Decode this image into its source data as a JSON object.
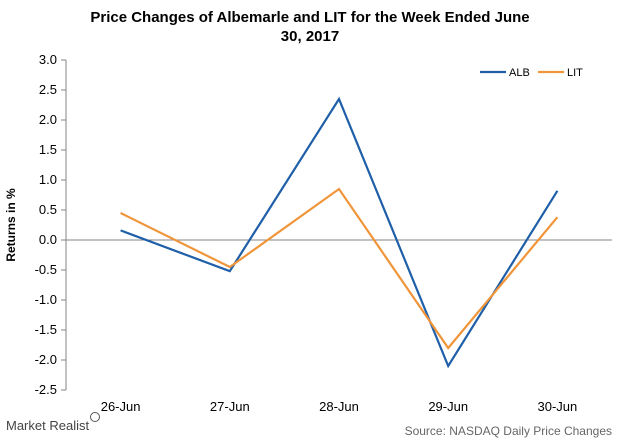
{
  "chart_data": {
    "type": "line",
    "title_line1": "Price Changes  of Albemarle  and LIT for the Week Ended June",
    "title_line2": "30, 2017",
    "ylabel": "Returns in %",
    "xlabel": "",
    "categories": [
      "26-Jun",
      "27-Jun",
      "28-Jun",
      "29-Jun",
      "30-Jun"
    ],
    "ylim": [
      -2.5,
      3.0
    ],
    "yticks": [
      "3.0",
      "2.5",
      "2.0",
      "1.5",
      "1.0",
      "0.5",
      "0.0",
      "-0.5",
      "-1.0",
      "-1.5",
      "-2.0",
      "-2.5"
    ],
    "series": [
      {
        "name": "ALB",
        "color": "#1f5fa8",
        "values": [
          0.16,
          -0.52,
          2.35,
          -2.1,
          0.82
        ]
      },
      {
        "name": "LIT",
        "color": "#f0953a",
        "values": [
          0.45,
          -0.45,
          0.85,
          -1.8,
          0.38
        ]
      }
    ],
    "legend": "top-right",
    "grid": false
  },
  "footer": {
    "logo_text": "Market Realist",
    "source": "Source: NASDAQ Daily Price Changes"
  }
}
